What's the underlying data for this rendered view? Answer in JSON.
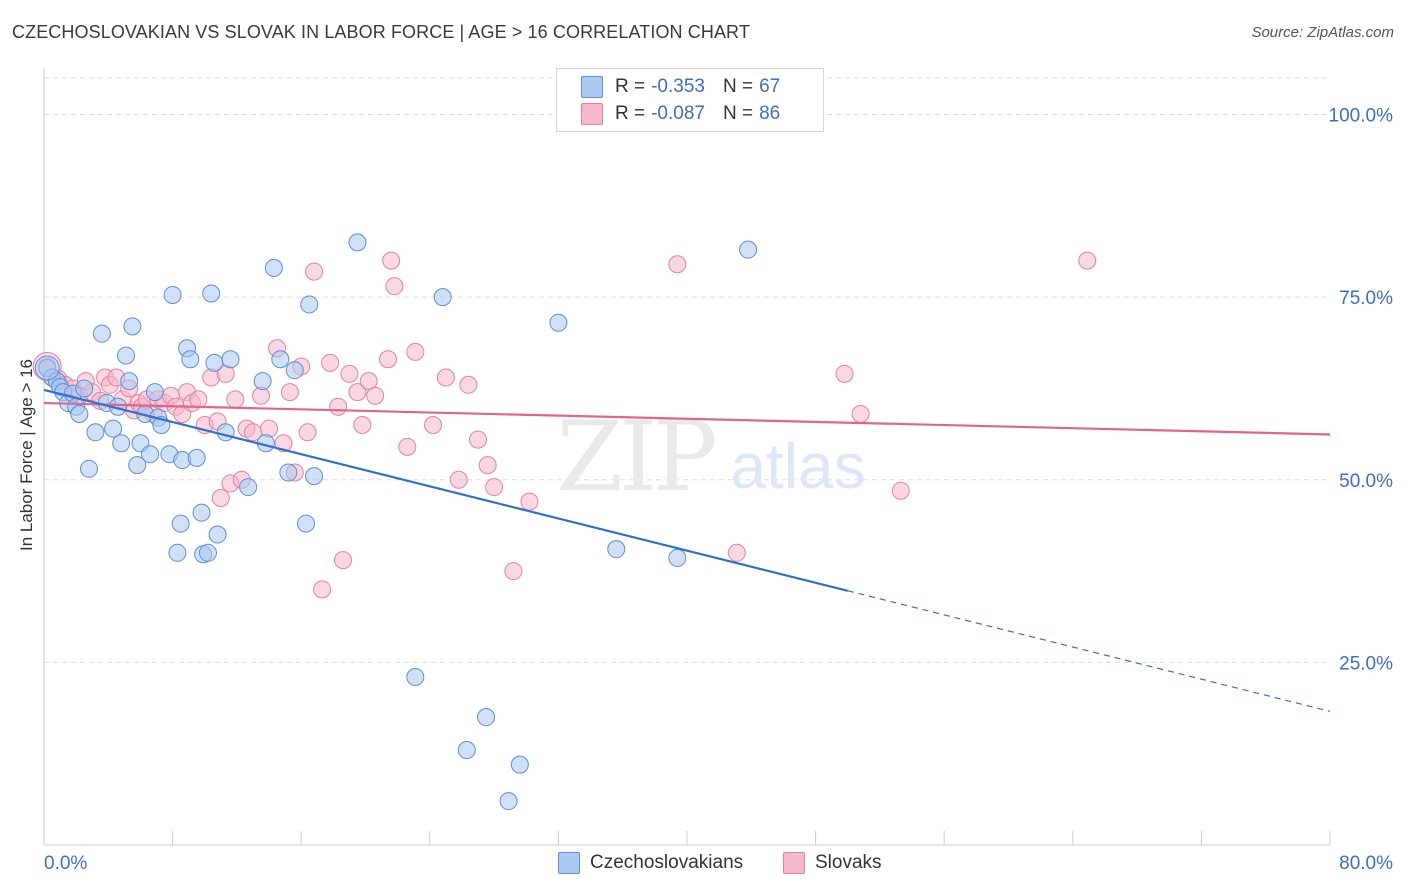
{
  "title": "CZECHOSLOVAKIAN VS SLOVAK IN LABOR FORCE | AGE > 16 CORRELATION CHART",
  "source": "Source: ZipAtlas.com",
  "watermark": {
    "zip": "ZIP",
    "atlas": "atlas"
  },
  "legend": {
    "czech": {
      "r_label": "R =",
      "r_value": "-0.353",
      "n_label": "N =",
      "n_value": "67"
    },
    "slovak": {
      "r_label": "R =",
      "r_value": "-0.087",
      "n_label": "N =",
      "n_value": "86"
    }
  },
  "bottom_legend": {
    "czech": "Czechoslovakians",
    "slovak": "Slovaks"
  },
  "colors": {
    "czech_fill": "#aac8f0",
    "czech_stroke": "#5b8fd6",
    "czech_line": "#2f6fd0",
    "slovak_fill": "#f6b8cc",
    "slovak_stroke": "#e5819f",
    "slovak_line": "#e0648e",
    "tick_text": "#3a6fc4",
    "grid": "#dddddd"
  },
  "chart_data": {
    "type": "scatter",
    "title": "CZECHOSLOVAKIAN VS SLOVAK IN LABOR FORCE | AGE > 16 CORRELATION CHART",
    "xlabel": "",
    "ylabel": "In Labor Force | Age > 16",
    "xlim": [
      0,
      80
    ],
    "ylim": [
      0,
      105
    ],
    "x_tick_labels": [
      "0.0%",
      "80.0%"
    ],
    "y_ticks": [
      25,
      50,
      75,
      100
    ],
    "y_tick_labels": [
      "25.0%",
      "50.0%",
      "75.0%",
      "100.0%"
    ],
    "grid": true,
    "legend_placement": "top-center",
    "series": [
      {
        "name": "Czechoslovakians",
        "r": -0.353,
        "n": 67,
        "trend": {
          "x0": 0,
          "y0": 62.3,
          "x1": 50,
          "y1": 34.8,
          "dashed_to_x": 80,
          "dashed_to_y": 18.3
        },
        "points": [
          [
            0.2,
            65.3
          ],
          [
            0.5,
            64.0
          ],
          [
            0.8,
            63.5
          ],
          [
            1.0,
            62.7
          ],
          [
            1.2,
            62.0
          ],
          [
            1.5,
            60.5
          ],
          [
            1.8,
            61.8
          ],
          [
            2.0,
            60.0
          ],
          [
            2.2,
            59.0
          ],
          [
            2.5,
            62.5
          ],
          [
            2.8,
            51.5
          ],
          [
            3.2,
            56.5
          ],
          [
            3.6,
            70.0
          ],
          [
            3.9,
            60.5
          ],
          [
            4.3,
            57.0
          ],
          [
            4.6,
            60.0
          ],
          [
            4.8,
            55.0
          ],
          [
            5.1,
            67.0
          ],
          [
            5.3,
            63.5
          ],
          [
            5.5,
            71.0
          ],
          [
            5.8,
            52.0
          ],
          [
            6.0,
            55.0
          ],
          [
            6.3,
            59.0
          ],
          [
            6.6,
            53.5
          ],
          [
            6.9,
            62.0
          ],
          [
            7.1,
            58.5
          ],
          [
            7.3,
            57.5
          ],
          [
            7.8,
            53.5
          ],
          [
            8.0,
            75.3
          ],
          [
            8.3,
            40.0
          ],
          [
            8.5,
            44.0
          ],
          [
            8.6,
            52.7
          ],
          [
            8.9,
            68.0
          ],
          [
            9.1,
            66.5
          ],
          [
            9.5,
            53.0
          ],
          [
            9.8,
            45.5
          ],
          [
            9.9,
            39.8
          ],
          [
            10.2,
            40.0
          ],
          [
            10.4,
            75.5
          ],
          [
            10.6,
            66.0
          ],
          [
            10.8,
            42.5
          ],
          [
            11.3,
            56.5
          ],
          [
            11.6,
            66.5
          ],
          [
            12.7,
            49.0
          ],
          [
            13.6,
            63.5
          ],
          [
            13.8,
            55.0
          ],
          [
            14.3,
            79.0
          ],
          [
            14.7,
            66.5
          ],
          [
            15.2,
            51.0
          ],
          [
            15.6,
            65.0
          ],
          [
            16.3,
            44.0
          ],
          [
            16.5,
            74.0
          ],
          [
            16.8,
            50.5
          ],
          [
            19.5,
            82.5
          ],
          [
            23.1,
            23.0
          ],
          [
            24.8,
            75.0
          ],
          [
            26.3,
            13.0
          ],
          [
            27.5,
            17.5
          ],
          [
            28.9,
            6.0
          ],
          [
            29.6,
            11.0
          ],
          [
            32.0,
            71.5
          ],
          [
            35.6,
            40.5
          ],
          [
            39.4,
            39.3
          ],
          [
            43.8,
            81.5
          ]
        ]
      },
      {
        "name": "Slovaks",
        "r": -0.087,
        "n": 86,
        "trend": {
          "x0": 0,
          "y0": 60.5,
          "x1": 80,
          "y1": 56.2
        },
        "points": [
          [
            0.2,
            65.5
          ],
          [
            0.5,
            64.0
          ],
          [
            0.9,
            63.8
          ],
          [
            1.3,
            63.0
          ],
          [
            1.8,
            62.5
          ],
          [
            2.2,
            61.5
          ],
          [
            2.6,
            63.5
          ],
          [
            3.0,
            62.0
          ],
          [
            3.5,
            60.8
          ],
          [
            3.8,
            64.0
          ],
          [
            4.1,
            63.0
          ],
          [
            4.5,
            64.0
          ],
          [
            4.9,
            61.0
          ],
          [
            5.3,
            62.5
          ],
          [
            5.6,
            59.5
          ],
          [
            5.9,
            60.5
          ],
          [
            6.1,
            60.0
          ],
          [
            6.4,
            61.0
          ],
          [
            6.8,
            59.0
          ],
          [
            7.1,
            61.0
          ],
          [
            7.5,
            60.5
          ],
          [
            7.9,
            61.5
          ],
          [
            8.2,
            60.0
          ],
          [
            8.6,
            59.0
          ],
          [
            8.9,
            62.0
          ],
          [
            9.2,
            60.5
          ],
          [
            9.6,
            61.0
          ],
          [
            10.0,
            57.5
          ],
          [
            10.4,
            64.0
          ],
          [
            10.8,
            58.0
          ],
          [
            11.0,
            47.5
          ],
          [
            11.3,
            64.5
          ],
          [
            11.6,
            49.5
          ],
          [
            11.9,
            61.0
          ],
          [
            12.3,
            50.0
          ],
          [
            12.6,
            57.0
          ],
          [
            13.0,
            56.5
          ],
          [
            13.5,
            61.5
          ],
          [
            14.0,
            57.0
          ],
          [
            14.5,
            68.0
          ],
          [
            14.9,
            55.0
          ],
          [
            15.3,
            62.0
          ],
          [
            15.6,
            51.0
          ],
          [
            16.0,
            65.5
          ],
          [
            16.4,
            56.5
          ],
          [
            16.8,
            78.5
          ],
          [
            17.3,
            35.0
          ],
          [
            17.8,
            66.0
          ],
          [
            18.3,
            60.0
          ],
          [
            18.6,
            39.0
          ],
          [
            19.0,
            64.5
          ],
          [
            19.5,
            62.0
          ],
          [
            19.8,
            57.5
          ],
          [
            20.2,
            63.5
          ],
          [
            20.6,
            61.5
          ],
          [
            21.4,
            66.5
          ],
          [
            21.6,
            80.0
          ],
          [
            21.8,
            76.5
          ],
          [
            22.6,
            54.5
          ],
          [
            23.1,
            67.5
          ],
          [
            24.2,
            57.5
          ],
          [
            25.0,
            64.0
          ],
          [
            25.8,
            50.0
          ],
          [
            26.4,
            63.0
          ],
          [
            27.0,
            55.5
          ],
          [
            27.6,
            52.0
          ],
          [
            28.0,
            49.0
          ],
          [
            29.2,
            37.5
          ],
          [
            30.2,
            47.0
          ],
          [
            39.4,
            79.5
          ],
          [
            43.1,
            40.0
          ],
          [
            49.8,
            64.5
          ],
          [
            50.8,
            59.0
          ],
          [
            53.3,
            48.5
          ],
          [
            64.9,
            80.0
          ]
        ]
      }
    ]
  }
}
